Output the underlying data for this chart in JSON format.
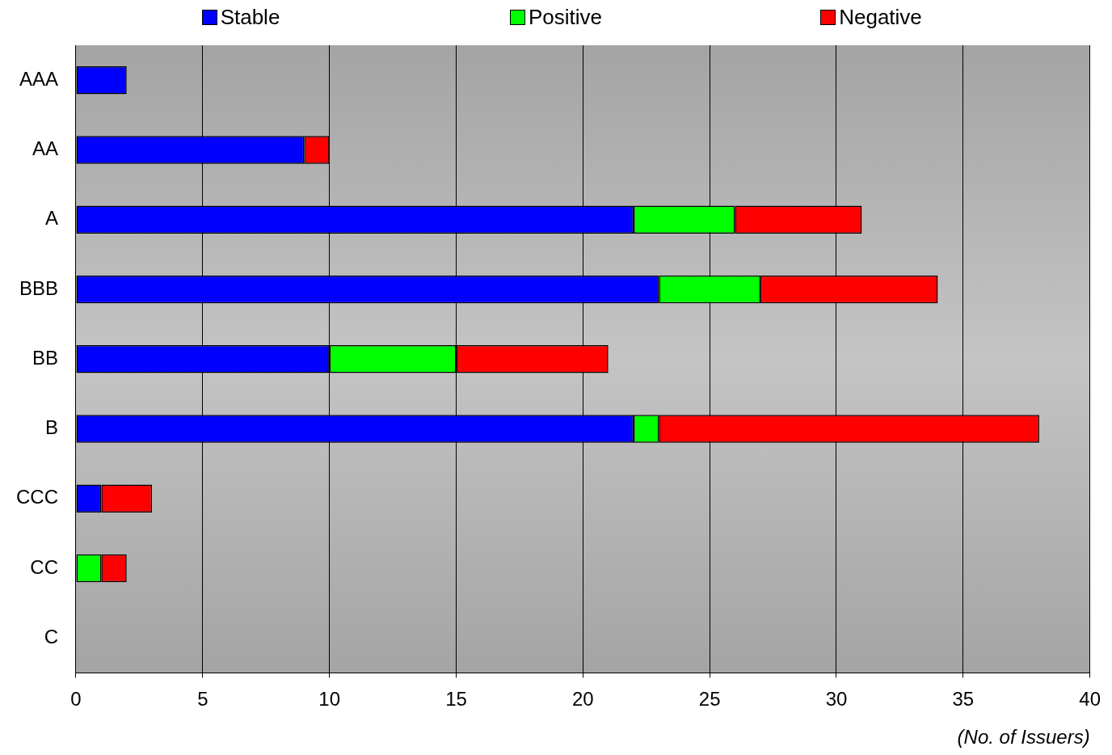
{
  "chart_data": {
    "type": "bar",
    "orientation": "horizontal",
    "stacked": true,
    "categories": [
      "AAA",
      "AA",
      "A",
      "BBB",
      "BB",
      "B",
      "CCC",
      "CC",
      "C"
    ],
    "series": [
      {
        "name": "Stable",
        "color": "#0000ff",
        "values": [
          2,
          9,
          22,
          23,
          10,
          22,
          1,
          0,
          0
        ]
      },
      {
        "name": "Positive",
        "color": "#00ff00",
        "values": [
          0,
          0,
          4,
          4,
          5,
          1,
          0,
          1,
          0
        ]
      },
      {
        "name": "Negative",
        "color": "#ff0000",
        "values": [
          0,
          1,
          5,
          7,
          6,
          15,
          2,
          1,
          0
        ]
      }
    ],
    "xlim": [
      0,
      40
    ],
    "xticks": [
      0,
      5,
      10,
      15,
      20,
      25,
      30,
      35,
      40
    ],
    "xlabel": "(No. of Issuers)",
    "grid": "x",
    "legend": "top"
  }
}
